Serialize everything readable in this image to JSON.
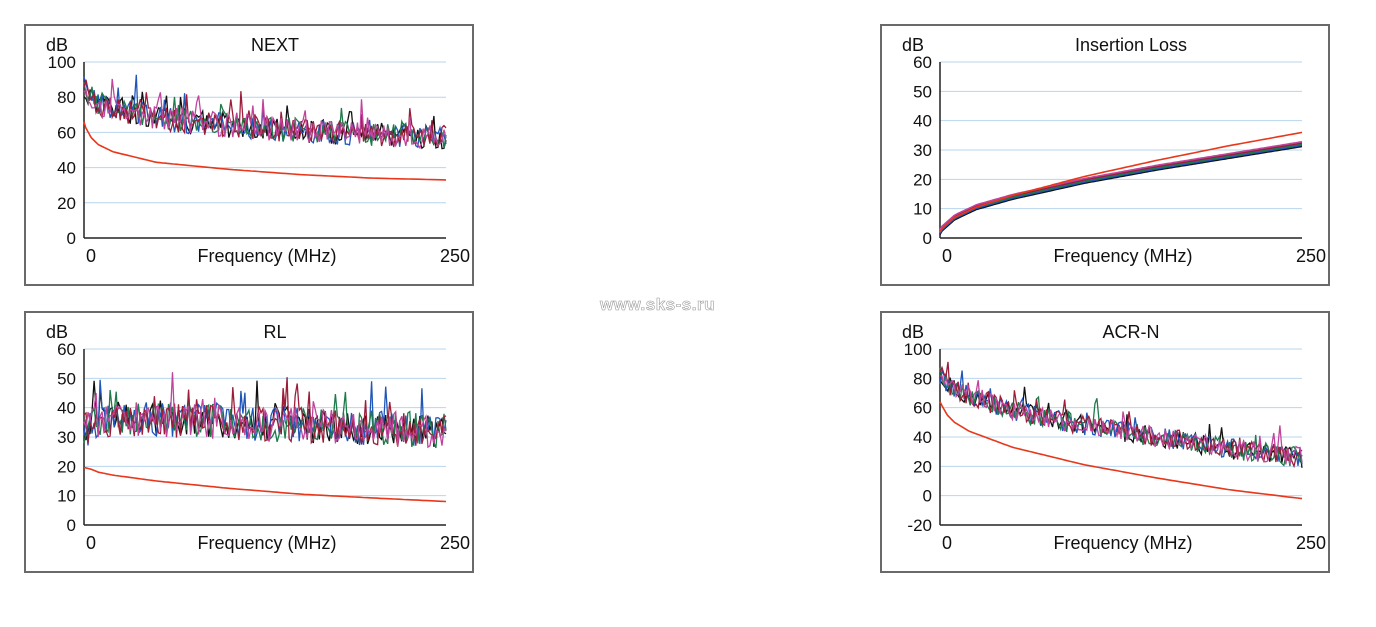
{
  "watermark": "www.sks-s.ru",
  "colors": {
    "limit": "#e8381c",
    "grid": "#b9d4ee",
    "series": [
      "#111111",
      "#1f56b8",
      "#1f7a4a",
      "#9b1d3a",
      "#c0449c"
    ]
  },
  "chart_data": [
    {
      "type": "line",
      "title": "NEXT",
      "ylabel": "dB",
      "xlabel": "Frequency (MHz)",
      "xlim": [
        0,
        250
      ],
      "ylim": [
        0,
        100
      ],
      "xticks": [
        "0",
        "250"
      ],
      "yticks": [
        0,
        20,
        40,
        60,
        80,
        100
      ],
      "limit_line": {
        "x": [
          0,
          1,
          5,
          10,
          20,
          50,
          100,
          150,
          200,
          250
        ],
        "y": [
          66,
          63,
          57,
          53,
          49,
          43,
          39,
          36,
          34,
          33
        ]
      },
      "measured_trend": {
        "x": [
          0,
          10,
          50,
          100,
          150,
          200,
          250
        ],
        "y": [
          85,
          76,
          68,
          64,
          61,
          59,
          57
        ]
      },
      "noise_amplitude": 7
    },
    {
      "type": "line",
      "title": "Insertion Loss",
      "ylabel": "dB",
      "xlabel": "Frequency (MHz)",
      "xlim": [
        0,
        250
      ],
      "ylim": [
        0,
        60
      ],
      "xticks": [
        "0",
        "250"
      ],
      "yticks": [
        0,
        10,
        20,
        30,
        40,
        50,
        60
      ],
      "limit_line": {
        "x": [
          0,
          1,
          10,
          25,
          50,
          100,
          150,
          200,
          250
        ],
        "y": [
          2,
          3,
          7,
          10.5,
          14.5,
          21,
          26.5,
          31.5,
          36
        ]
      },
      "measured_trend": {
        "x": [
          0,
          1,
          10,
          25,
          50,
          100,
          150,
          200,
          250
        ],
        "y": [
          2,
          3,
          7,
          10.5,
          14,
          19.5,
          24,
          28,
          32
        ]
      },
      "noise_amplitude": 0
    },
    {
      "type": "line",
      "title": "RL",
      "ylabel": "dB",
      "xlabel": "Frequency (MHz)",
      "xlim": [
        0,
        250
      ],
      "ylim": [
        0,
        60
      ],
      "xticks": [
        "0",
        "250"
      ],
      "yticks": [
        0,
        10,
        20,
        30,
        40,
        50,
        60
      ],
      "limit_line": {
        "x": [
          0,
          1,
          5,
          10,
          20,
          50,
          100,
          150,
          200,
          250
        ],
        "y": [
          19.5,
          19.5,
          19,
          18,
          17,
          15,
          12.5,
          10.5,
          9.2,
          8
        ]
      },
      "measured_trend": {
        "x": [
          0,
          10,
          50,
          100,
          150,
          200,
          250
        ],
        "y": [
          32,
          36,
          36,
          35,
          34,
          33,
          32
        ]
      },
      "noise_amplitude": 6
    },
    {
      "type": "line",
      "title": "ACR-N",
      "ylabel": "dB",
      "xlabel": "Frequency (MHz)",
      "xlim": [
        0,
        250
      ],
      "ylim": [
        -20,
        100
      ],
      "xticks": [
        "0",
        "250"
      ],
      "yticks": [
        -20,
        0,
        20,
        40,
        60,
        80,
        100
      ],
      "limit_line": {
        "x": [
          0,
          1,
          5,
          10,
          20,
          50,
          100,
          150,
          200,
          250
        ],
        "y": [
          64,
          62,
          55,
          50,
          44,
          33,
          21,
          12,
          4,
          -2
        ]
      },
      "measured_trend": {
        "x": [
          0,
          10,
          50,
          100,
          150,
          200,
          250
        ],
        "y": [
          82,
          72,
          58,
          48,
          40,
          32,
          26
        ]
      },
      "noise_amplitude": 7
    }
  ]
}
